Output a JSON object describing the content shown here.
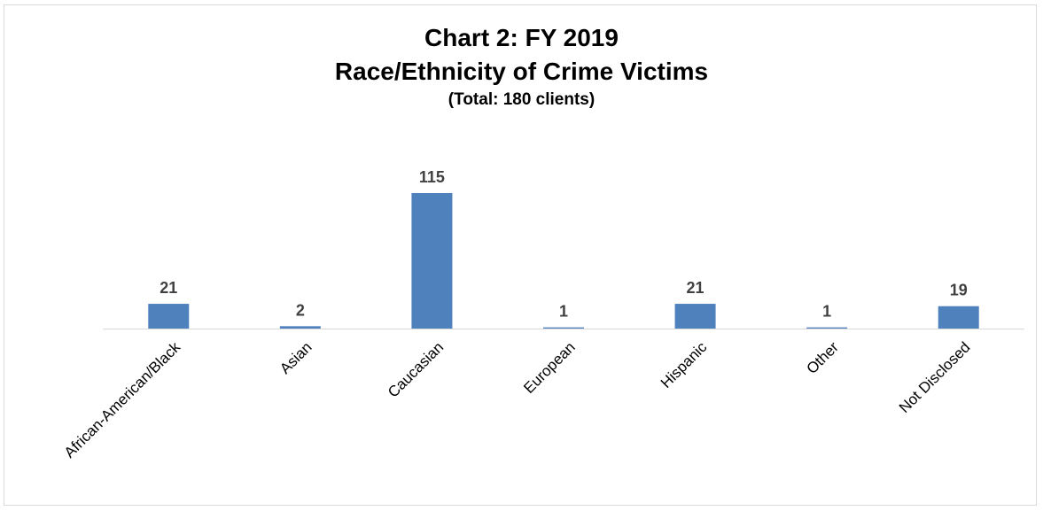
{
  "chart_data": {
    "type": "bar",
    "title": "Chart 2: FY 2019",
    "title_line2": "Race/Ethnicity of Crime Victims",
    "subtitle": "(Total: 180 clients)",
    "categories": [
      "African-American/Black",
      "Asian",
      "Caucasian",
      "European",
      "Hispanic",
      "Other",
      "Not Disclosed"
    ],
    "values": [
      21,
      2,
      115,
      1,
      21,
      1,
      19
    ],
    "data_labels": [
      "21",
      "2",
      "115",
      "1",
      "21",
      "1",
      "19"
    ],
    "xlabel": "",
    "ylabel": "",
    "ylim": [
      0,
      115
    ],
    "grid": false,
    "legend": "none",
    "y_axis_shown": false,
    "bar_color": "#4f81bd",
    "axis_color": "#d9d9d9",
    "label_color": "#404040"
  }
}
